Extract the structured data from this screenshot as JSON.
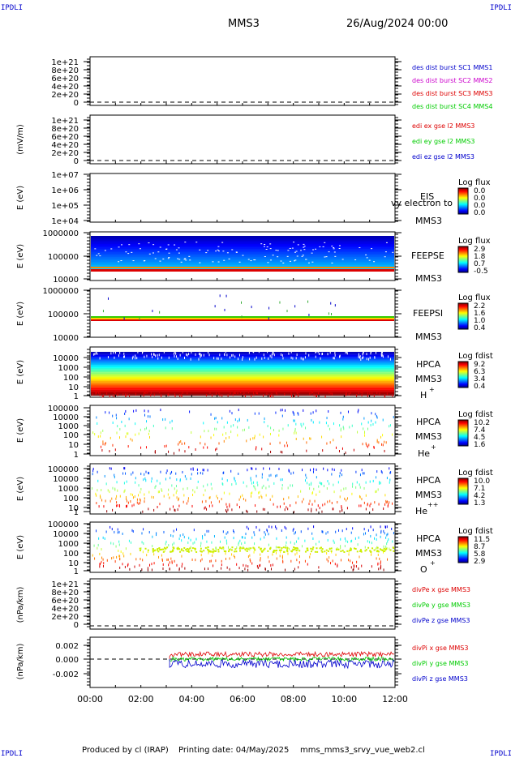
{
  "header": {
    "corner_label": "IPDLI",
    "spacecraft": "MMS3",
    "date_time": "26/Aug/2024 00:00"
  },
  "footer": {
    "credit": "Produced by cl (IRAP)",
    "printing_date": "Printing date: 04/May/2025",
    "filename": "mms_mms3_srvy_vue_web2.cl"
  },
  "colors": {
    "red": "#dd0000",
    "green": "#00cc00",
    "blue": "#0000cc",
    "magenta": "#cc00cc"
  },
  "chart_data": [
    {
      "type": "line",
      "panel": "des-dist-burst",
      "ylabel": "",
      "yticks": [
        "1e+21",
        "8e+20",
        "6e+20",
        "4e+20",
        "2e+20",
        "0"
      ],
      "ylim": [
        0,
        1e+21
      ],
      "series": [
        {
          "name": "des dist burst SC1 MMS1",
          "color": "#0000cc",
          "values": []
        },
        {
          "name": "des dist burst SC2 MMS2",
          "color": "#cc00cc",
          "values": []
        },
        {
          "name": "des dist burst SC3 MMS3",
          "color": "#dd0000",
          "values": []
        },
        {
          "name": "des dist burst SC4 MMS4",
          "color": "#00cc00",
          "values": []
        }
      ]
    },
    {
      "type": "line",
      "panel": "edi-e-gse",
      "ylabel": "(mV/m)",
      "yticks": [
        "1e+21",
        "8e+20",
        "6e+20",
        "4e+20",
        "2e+20",
        "0"
      ],
      "ylim": [
        0,
        1e+21
      ],
      "series": [
        {
          "name": "edi ex gse l2 MMS3",
          "color": "#dd0000",
          "values": []
        },
        {
          "name": "edi ey gse l2 MMS3",
          "color": "#00cc00",
          "values": []
        },
        {
          "name": "edi ez gse l2 MMS3",
          "color": "#0000cc",
          "values": []
        }
      ]
    },
    {
      "type": "heatmap",
      "panel": "eis",
      "ylabel": "E (eV)",
      "yticks": [
        "1e+07",
        "1e+06",
        "1e+05",
        "1e+04"
      ],
      "log_scale": true,
      "labels": [
        "EIS",
        "vy electron to",
        "MMS3"
      ],
      "colorbar": {
        "title": "Log flux",
        "ticks": [
          "0.0",
          "0.0",
          "0.0",
          "0.0"
        ]
      }
    },
    {
      "type": "heatmap",
      "panel": "feepse",
      "ylabel": "E (eV)",
      "yticks": [
        "1000000",
        "100000",
        "10000"
      ],
      "log_scale": true,
      "labels": [
        "FEEPSE",
        "MMS3"
      ],
      "colorbar": {
        "title": "Log flux",
        "ticks": [
          "2.9",
          "1.8",
          "0.7",
          "-0.5"
        ]
      }
    },
    {
      "type": "heatmap",
      "panel": "feepsi",
      "ylabel": "E (eV)",
      "yticks": [
        "1000000",
        "100000",
        "10000"
      ],
      "log_scale": true,
      "labels": [
        "FEEPSI",
        "MMS3"
      ],
      "colorbar": {
        "title": "Log flux",
        "ticks": [
          "2.2",
          "1.6",
          "1.0",
          "0.4"
        ]
      }
    },
    {
      "type": "heatmap",
      "panel": "hpca-h",
      "ylabel": "E (eV)",
      "yticks": [
        "10000",
        "1000",
        "100",
        "10",
        "1"
      ],
      "log_scale": true,
      "labels": [
        "HPCA",
        "MMS3",
        "H",
        "+"
      ],
      "colorbar": {
        "title": "Log fdist",
        "ticks": [
          "9.2",
          "6.3",
          "3.4",
          "0.4"
        ]
      }
    },
    {
      "type": "heatmap",
      "panel": "hpca-he",
      "ylabel": "E (eV)",
      "yticks": [
        "100000",
        "10000",
        "1000",
        "100",
        "10",
        "1"
      ],
      "log_scale": true,
      "labels": [
        "HPCA",
        "MMS3",
        "He",
        "+"
      ],
      "colorbar": {
        "title": "Log fdist",
        "ticks": [
          "10.2",
          "7.4",
          "4.5",
          "1.6"
        ]
      }
    },
    {
      "type": "heatmap",
      "panel": "hpca-hepp",
      "ylabel": "E (eV)",
      "yticks": [
        "100000",
        "10000",
        "1000",
        "100",
        "10",
        "1"
      ],
      "log_scale": true,
      "labels": [
        "HPCA",
        "MMS3",
        "He",
        "++"
      ],
      "colorbar": {
        "title": "Log fdist",
        "ticks": [
          "10.0",
          "7.1",
          "4.2",
          "1.3"
        ]
      }
    },
    {
      "type": "heatmap",
      "panel": "hpca-o",
      "ylabel": "E (eV)",
      "yticks": [
        "100000",
        "10000",
        "1000",
        "100",
        "10",
        "1"
      ],
      "log_scale": true,
      "labels": [
        "HPCA",
        "MMS3",
        "O",
        "+"
      ],
      "colorbar": {
        "title": "Log fdist",
        "ticks": [
          "11.5",
          "8.7",
          "5.8",
          "2.9"
        ]
      }
    },
    {
      "type": "line",
      "panel": "divpe",
      "ylabel": "(nPa/km)",
      "yticks": [
        "1e+21",
        "8e+20",
        "6e+20",
        "4e+20",
        "2e+20",
        "0"
      ],
      "ylim": [
        0,
        1e+21
      ],
      "series": [
        {
          "name": "divPe x gse MMS3",
          "color": "#dd0000",
          "values": []
        },
        {
          "name": "divPe y gse MMS3",
          "color": "#00cc00",
          "values": []
        },
        {
          "name": "divPe z gse MMS3",
          "color": "#0000cc",
          "values": []
        }
      ]
    },
    {
      "type": "line",
      "panel": "divpi",
      "ylabel": "(nPa/km)",
      "yticks": [
        "0.002",
        "0.000",
        "-0.002"
      ],
      "ylim": [
        -0.003,
        0.003
      ],
      "data_start": "03:08",
      "series": [
        {
          "name": "divPi x gse MMS3",
          "color": "#dd0000"
        },
        {
          "name": "divPi y gse MMS3",
          "color": "#00cc00"
        },
        {
          "name": "divPi z gse MMS3",
          "color": "#0000cc"
        }
      ]
    }
  ],
  "xaxis": {
    "ticks": [
      "00:00",
      "02:00",
      "04:00",
      "06:00",
      "08:00",
      "10:00",
      "12:00"
    ]
  }
}
